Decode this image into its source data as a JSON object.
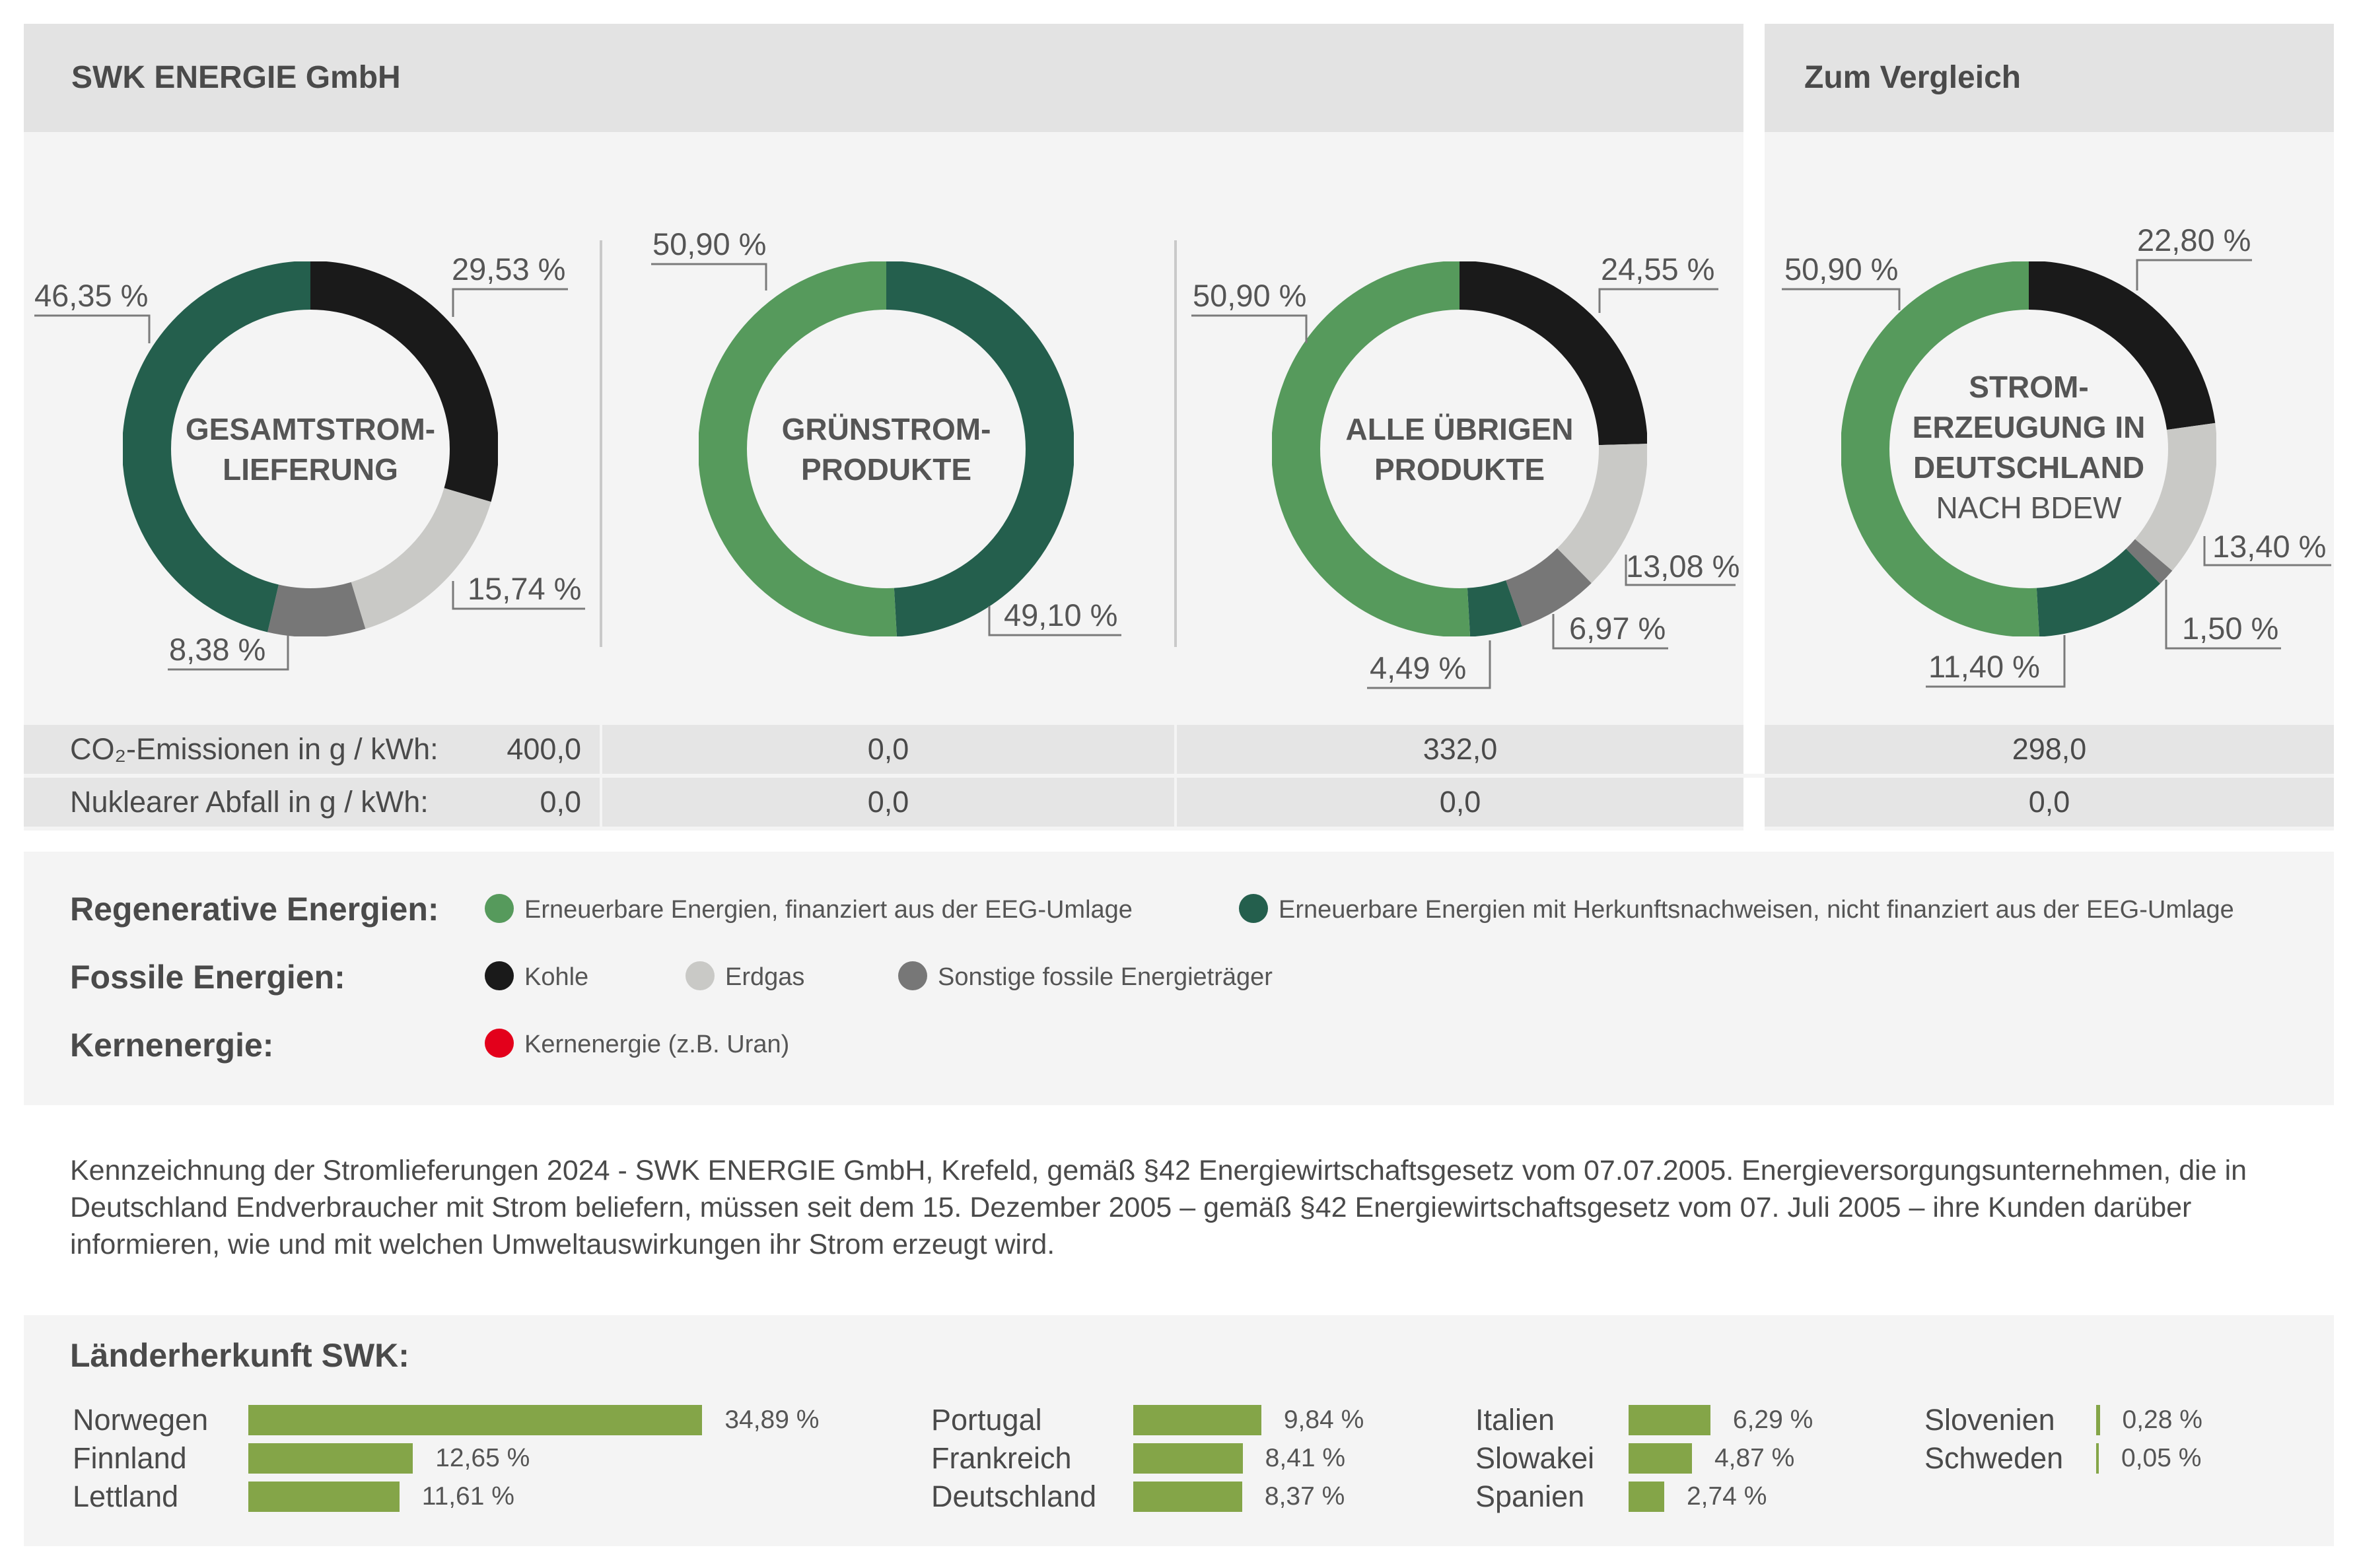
{
  "header_left": "SWK ENERGIE GmbH",
  "header_right": "Zum Vergleich",
  "colors": {
    "eeg": "#569a5c",
    "herkunft": "#245f4d",
    "kohle": "#1a1a1a",
    "erdgas": "#c9c9c6",
    "sonstige": "#777777",
    "kern": "#e3001b",
    "bar": "#84a548"
  },
  "chart_data": [
    {
      "type": "pie",
      "title_lines": [
        "GESAMTSTROM-",
        "LIEFERUNG"
      ],
      "subtitle": "",
      "slices": [
        {
          "category": "kohle",
          "value": 29.53,
          "label": "29,53 %"
        },
        {
          "category": "erdgas",
          "value": 15.74,
          "label": "15,74 %"
        },
        {
          "category": "sonstige",
          "value": 8.38,
          "label": "8,38 %"
        },
        {
          "category": "herkunft",
          "value": 46.35,
          "label": "46,35 %"
        }
      ]
    },
    {
      "type": "pie",
      "title_lines": [
        "GRÜNSTROM-",
        "PRODUKTE"
      ],
      "subtitle": "",
      "slices": [
        {
          "category": "herkunft",
          "value": 49.1,
          "label": "49,10 %"
        },
        {
          "category": "eeg",
          "value": 50.9,
          "label": "50,90 %"
        }
      ]
    },
    {
      "type": "pie",
      "title_lines": [
        "ALLE ÜBRIGEN",
        "PRODUKTE"
      ],
      "subtitle": "",
      "slices": [
        {
          "category": "kohle",
          "value": 24.55,
          "label": "24,55 %"
        },
        {
          "category": "erdgas",
          "value": 13.08,
          "label": "13,08 %"
        },
        {
          "category": "sonstige",
          "value": 6.97,
          "label": "6,97 %"
        },
        {
          "category": "herkunft",
          "value": 4.49,
          "label": "4,49 %"
        },
        {
          "category": "eeg",
          "value": 50.9,
          "label": "50,90 %"
        }
      ]
    },
    {
      "type": "pie",
      "title_lines": [
        "STROM-",
        "ERZEUGUNG IN",
        "DEUTSCHLAND"
      ],
      "subtitle": "NACH BDEW",
      "slices": [
        {
          "category": "kohle",
          "value": 22.8,
          "label": "22,80 %"
        },
        {
          "category": "erdgas",
          "value": 13.4,
          "label": "13,40 %"
        },
        {
          "category": "sonstige",
          "value": 1.5,
          "label": "1,50 %"
        },
        {
          "category": "herkunft",
          "value": 11.4,
          "label": "11,40 %"
        },
        {
          "category": "eeg",
          "value": 50.9,
          "label": "50,90 %"
        }
      ]
    },
    {
      "type": "bar",
      "title": "Länderherkunft SWK:",
      "categories": [
        "Norwegen",
        "Finnland",
        "Lettland",
        "Portugal",
        "Frankreich",
        "Deutschland",
        "Italien",
        "Slowakei",
        "Spanien",
        "Slovenien",
        "Schweden"
      ],
      "values": [
        34.89,
        12.65,
        11.61,
        9.84,
        8.41,
        8.37,
        6.29,
        4.87,
        2.74,
        0.28,
        0.05
      ],
      "labels": [
        "34,89 %",
        "12,65 %",
        "11,61 %",
        "9,84 %",
        "8,41 %",
        "8,37 %",
        "6,29 %",
        "4,87 %",
        "2,74 %",
        "0,28 %",
        "0,05 %"
      ]
    }
  ],
  "table": {
    "co2_label": "CO₂-Emissionen in g / kWh:",
    "waste_label": "Nuklearer Abfall in g / kWh:",
    "co2_values": [
      "400,0",
      "0,0",
      "332,0",
      "298,0"
    ],
    "waste_values": [
      "0,0",
      "0,0",
      "0,0",
      "0,0"
    ]
  },
  "legend": {
    "regenerative_title": "Regenerative Energien:",
    "fossil_title": "Fossile Energien:",
    "kern_title": "Kernenergie:",
    "eeg": "Erneuerbare Energien, finanziert aus der EEG-Umlage",
    "herkunft": "Erneuerbare Energien mit Herkunftsnachweisen, nicht finanziert aus der EEG-Umlage",
    "kohle": "Kohle",
    "erdgas": "Erdgas",
    "sonstige": "Sonstige fossile Energieträger",
    "kern": "Kernenergie (z.B. Uran)"
  },
  "paragraph": "Kennzeichnung der Stromlieferungen 2024 - SWK ENERGIE GmbH, Krefeld, gemäß §42 Energiewirtschaftsgesetz vom 07.07.2005. Energieversorgungsunternehmen, die in Deutschland Endverbraucher mit Strom beliefern, müssen seit dem 15. Dezember 2005 – gemäß §42 Energiewirtschaftsgesetz vom 07. Juli 2005 – ihre Kunden darüber informieren, wie und mit welchen Umweltauswirkungen ihr Strom erzeugt wird.",
  "laender_title": "Länderherkunft SWK:"
}
